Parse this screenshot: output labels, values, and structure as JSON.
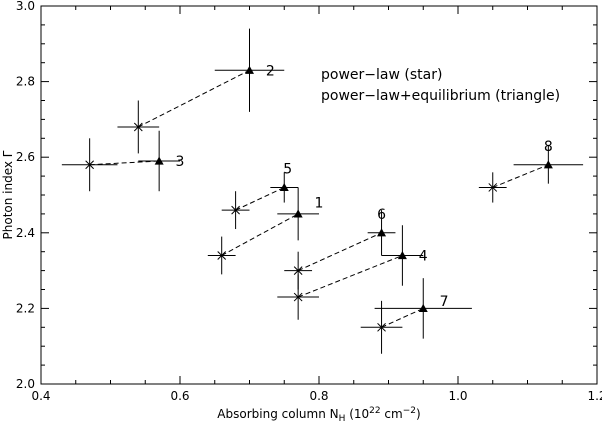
{
  "chart_data": {
    "type": "scatter",
    "xlabel": "Absorbing column N",
    "xlabel_sub": "H",
    "xlabel_units_open": " (10",
    "xlabel_units_exp": "22",
    "xlabel_units_mid": " cm",
    "xlabel_units_exp2": "−2",
    "xlabel_units_close": ")",
    "ylabel": "Photon index Γ",
    "xlim": [
      0.4,
      1.2
    ],
    "ylim": [
      2.0,
      3.0
    ],
    "xticks": [
      0.4,
      0.6,
      0.8,
      1.0,
      1.2
    ],
    "xtick_labels": [
      "0.4",
      "0.6",
      "0.8",
      "1.0",
      "1.2"
    ],
    "yticks": [
      2.0,
      2.2,
      2.4,
      2.6,
      2.8,
      3.0
    ],
    "ytick_labels": [
      "2.0",
      "2.2",
      "2.4",
      "2.6",
      "2.8",
      "3.0"
    ],
    "grid": false,
    "legend_lines": [
      "power−law (star)",
      "power−law+equilibrium (triangle)"
    ],
    "legend_placement": "top-right",
    "series": [
      {
        "marker": "star",
        "points": [
          {
            "id": "1",
            "x": 0.66,
            "y": 2.34,
            "xerr": [
              0.02,
              0.02
            ],
            "yerr": [
              0.05,
              0.05
            ]
          },
          {
            "id": "2",
            "x": 0.54,
            "y": 2.68,
            "xerr": [
              0.03,
              0.03
            ],
            "yerr": [
              0.07,
              0.07
            ]
          },
          {
            "id": "3",
            "x": 0.47,
            "y": 2.58,
            "xerr": [
              0.04,
              0.04
            ],
            "yerr": [
              0.07,
              0.07
            ]
          },
          {
            "id": "4",
            "x": 0.77,
            "y": 2.23,
            "xerr": [
              0.03,
              0.03
            ],
            "yerr": [
              0.06,
              0.06
            ]
          },
          {
            "id": "5",
            "x": 0.68,
            "y": 2.46,
            "xerr": [
              0.02,
              0.02
            ],
            "yerr": [
              0.05,
              0.05
            ]
          },
          {
            "id": "6",
            "x": 0.77,
            "y": 2.3,
            "xerr": [
              0.02,
              0.02
            ],
            "yerr": [
              0.05,
              0.05
            ]
          },
          {
            "id": "7",
            "x": 0.89,
            "y": 2.15,
            "xerr": [
              0.03,
              0.03
            ],
            "yerr": [
              0.07,
              0.07
            ]
          },
          {
            "id": "8",
            "x": 1.05,
            "y": 2.52,
            "xerr": [
              0.02,
              0.02
            ],
            "yerr": [
              0.04,
              0.04
            ]
          }
        ]
      },
      {
        "marker": "triangle",
        "points": [
          {
            "id": "1",
            "x": 0.77,
            "y": 2.45,
            "xerr": [
              0.03,
              0.03
            ],
            "yerr": [
              0.07,
              0.07
            ]
          },
          {
            "id": "2",
            "x": 0.7,
            "y": 2.83,
            "xerr": [
              0.05,
              0.05
            ],
            "yerr": [
              0.11,
              0.11
            ]
          },
          {
            "id": "3",
            "x": 0.57,
            "y": 2.59,
            "xerr": [
              0.03,
              0.03
            ],
            "yerr": [
              0.08,
              0.08
            ]
          },
          {
            "id": "4",
            "x": 0.92,
            "y": 2.34,
            "xerr": [
              0.03,
              0.03
            ],
            "yerr": [
              0.08,
              0.08
            ]
          },
          {
            "id": "5",
            "x": 0.75,
            "y": 2.52,
            "xerr": [
              0.02,
              0.02
            ],
            "yerr": [
              0.04,
              0.04
            ]
          },
          {
            "id": "6",
            "x": 0.89,
            "y": 2.4,
            "xerr": [
              0.02,
              0.02
            ],
            "yerr": [
              0.06,
              0.06
            ]
          },
          {
            "id": "7",
            "x": 0.95,
            "y": 2.2,
            "xerr": [
              0.07,
              0.07
            ],
            "yerr": [
              0.08,
              0.08
            ]
          },
          {
            "id": "8",
            "x": 1.13,
            "y": 2.58,
            "xerr": [
              0.05,
              0.05
            ],
            "yerr": [
              0.05,
              0.05
            ]
          }
        ]
      }
    ],
    "pair_labels": [
      {
        "text": "1",
        "x": 0.8,
        "y": 2.48
      },
      {
        "text": "2",
        "x": 0.73,
        "y": 2.83
      },
      {
        "text": "3",
        "x": 0.6,
        "y": 2.59
      },
      {
        "text": "4",
        "x": 0.95,
        "y": 2.34
      },
      {
        "text": "5",
        "x": 0.755,
        "y": 2.57
      },
      {
        "text": "6",
        "x": 0.89,
        "y": 2.45
      },
      {
        "text": "7",
        "x": 0.98,
        "y": 2.22
      },
      {
        "text": "8",
        "x": 1.13,
        "y": 2.63
      }
    ]
  }
}
